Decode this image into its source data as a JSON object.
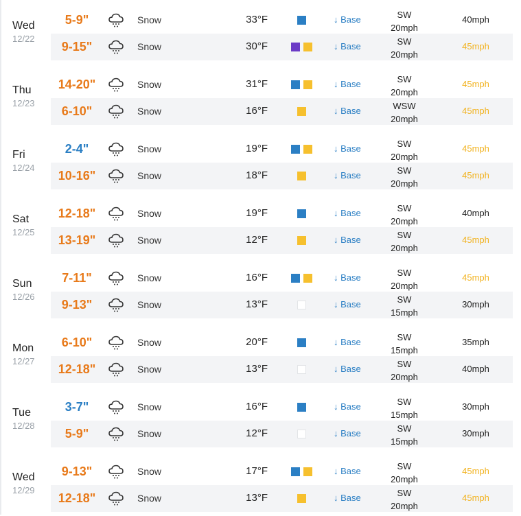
{
  "colors": {
    "snow_orange": "#e87a1a",
    "snow_blue": "#2b7fc4",
    "quality_blue": "#2b7fc4",
    "quality_yellow": "#f6c02e",
    "quality_purple": "#6b3bc6",
    "gust_high": "#f2b321",
    "row_alt": "#f3f4f6"
  },
  "days": [
    {
      "name": "Wed",
      "date": "12/22",
      "rows": [
        {
          "snow": "5-9\"",
          "snow_color": "orange",
          "icon": "snow-cloud-icon",
          "condition": "Snow",
          "temp": "33°F",
          "quality": [
            "blue"
          ],
          "base": "↓ Base",
          "wind_dir": "SW",
          "wind_speed": "20mph",
          "gust": "40mph",
          "gust_level": "normal"
        },
        {
          "snow": "9-15\"",
          "snow_color": "orange",
          "icon": "snow-cloud-icon",
          "condition": "Snow",
          "temp": "30°F",
          "quality": [
            "purple",
            "yellow"
          ],
          "base": "↓ Base",
          "wind_dir": "SW",
          "wind_speed": "20mph",
          "gust": "45mph",
          "gust_level": "high"
        }
      ]
    },
    {
      "name": "Thu",
      "date": "12/23",
      "rows": [
        {
          "snow": "14-20\"",
          "snow_color": "orange",
          "icon": "snow-cloud-icon",
          "condition": "Snow",
          "temp": "31°F",
          "quality": [
            "blue",
            "yellow"
          ],
          "base": "↓ Base",
          "wind_dir": "SW",
          "wind_speed": "20mph",
          "gust": "45mph",
          "gust_level": "high"
        },
        {
          "snow": "6-10\"",
          "snow_color": "orange",
          "icon": "snow-cloud-icon",
          "condition": "Snow",
          "temp": "16°F",
          "quality": [
            "yellow"
          ],
          "base": "↓ Base",
          "wind_dir": "WSW",
          "wind_speed": "20mph",
          "gust": "45mph",
          "gust_level": "high"
        }
      ]
    },
    {
      "name": "Fri",
      "date": "12/24",
      "rows": [
        {
          "snow": "2-4\"",
          "snow_color": "blue",
          "icon": "snow-cloud-icon",
          "condition": "Snow",
          "temp": "19°F",
          "quality": [
            "blue",
            "yellow"
          ],
          "base": "↓ Base",
          "wind_dir": "SW",
          "wind_speed": "20mph",
          "gust": "45mph",
          "gust_level": "high"
        },
        {
          "snow": "10-16\"",
          "snow_color": "orange",
          "icon": "snow-cloud-icon",
          "condition": "Snow",
          "temp": "18°F",
          "quality": [
            "yellow"
          ],
          "base": "↓ Base",
          "wind_dir": "SW",
          "wind_speed": "20mph",
          "gust": "45mph",
          "gust_level": "high"
        }
      ]
    },
    {
      "name": "Sat",
      "date": "12/25",
      "rows": [
        {
          "snow": "12-18\"",
          "snow_color": "orange",
          "icon": "snow-cloud-icon",
          "condition": "Snow",
          "temp": "19°F",
          "quality": [
            "blue"
          ],
          "base": "↓ Base",
          "wind_dir": "SW",
          "wind_speed": "20mph",
          "gust": "40mph",
          "gust_level": "normal"
        },
        {
          "snow": "13-19\"",
          "snow_color": "orange",
          "icon": "snow-cloud-icon",
          "condition": "Snow",
          "temp": "12°F",
          "quality": [
            "yellow"
          ],
          "base": "↓ Base",
          "wind_dir": "SW",
          "wind_speed": "20mph",
          "gust": "45mph",
          "gust_level": "high"
        }
      ]
    },
    {
      "name": "Sun",
      "date": "12/26",
      "rows": [
        {
          "snow": "7-11\"",
          "snow_color": "orange",
          "icon": "snow-cloud-icon",
          "condition": "Snow",
          "temp": "16°F",
          "quality": [
            "blue",
            "yellow"
          ],
          "base": "↓ Base",
          "wind_dir": "SW",
          "wind_speed": "20mph",
          "gust": "45mph",
          "gust_level": "high"
        },
        {
          "snow": "9-13\"",
          "snow_color": "orange",
          "icon": "snow-cloud-icon",
          "condition": "Snow",
          "temp": "13°F",
          "quality": [
            "empty"
          ],
          "base": "↓ Base",
          "wind_dir": "SW",
          "wind_speed": "15mph",
          "gust": "30mph",
          "gust_level": "normal"
        }
      ]
    },
    {
      "name": "Mon",
      "date": "12/27",
      "rows": [
        {
          "snow": "6-10\"",
          "snow_color": "orange",
          "icon": "snow-cloud-icon",
          "condition": "Snow",
          "temp": "20°F",
          "quality": [
            "blue"
          ],
          "base": "↓ Base",
          "wind_dir": "SW",
          "wind_speed": "15mph",
          "gust": "35mph",
          "gust_level": "normal"
        },
        {
          "snow": "12-18\"",
          "snow_color": "orange",
          "icon": "snow-cloud-icon",
          "condition": "Snow",
          "temp": "13°F",
          "quality": [
            "empty"
          ],
          "base": "↓ Base",
          "wind_dir": "SW",
          "wind_speed": "20mph",
          "gust": "40mph",
          "gust_level": "normal"
        }
      ]
    },
    {
      "name": "Tue",
      "date": "12/28",
      "rows": [
        {
          "snow": "3-7\"",
          "snow_color": "blue",
          "icon": "snow-cloud-icon",
          "condition": "Snow",
          "temp": "16°F",
          "quality": [
            "blue"
          ],
          "base": "↓ Base",
          "wind_dir": "SW",
          "wind_speed": "15mph",
          "gust": "30mph",
          "gust_level": "normal"
        },
        {
          "snow": "5-9\"",
          "snow_color": "orange",
          "icon": "snow-cloud-icon",
          "condition": "Snow",
          "temp": "12°F",
          "quality": [
            "empty"
          ],
          "base": "↓ Base",
          "wind_dir": "SW",
          "wind_speed": "15mph",
          "gust": "30mph",
          "gust_level": "normal"
        }
      ]
    },
    {
      "name": "Wed",
      "date": "12/29",
      "rows": [
        {
          "snow": "9-13\"",
          "snow_color": "orange",
          "icon": "snow-cloud-icon",
          "condition": "Snow",
          "temp": "17°F",
          "quality": [
            "blue",
            "yellow"
          ],
          "base": "↓ Base",
          "wind_dir": "SW",
          "wind_speed": "20mph",
          "gust": "45mph",
          "gust_level": "high"
        },
        {
          "snow": "12-18\"",
          "snow_color": "orange",
          "icon": "snow-cloud-icon",
          "condition": "Snow",
          "temp": "13°F",
          "quality": [
            "yellow"
          ],
          "base": "↓ Base",
          "wind_dir": "SW",
          "wind_speed": "20mph",
          "gust": "45mph",
          "gust_level": "high"
        }
      ]
    }
  ]
}
